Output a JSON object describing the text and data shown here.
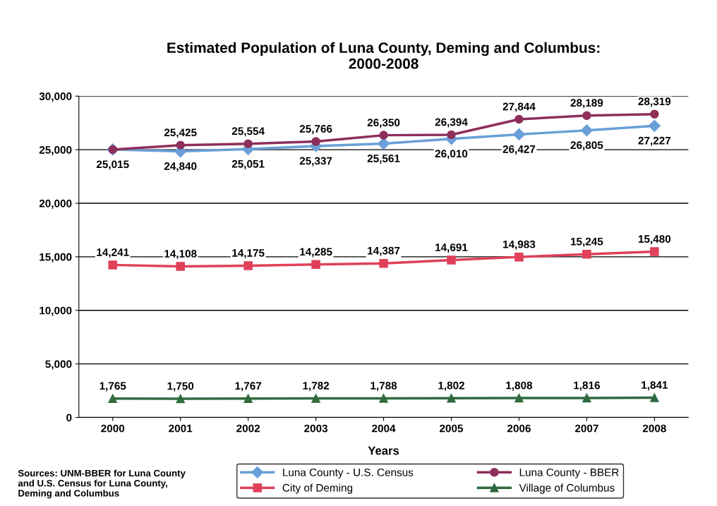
{
  "chart_data": {
    "type": "line",
    "title": "Estimated Population of Luna County, Deming and Columbus:\n2000-2008",
    "xlabel": "Years",
    "categories": [
      "2000",
      "2001",
      "2002",
      "2003",
      "2004",
      "2005",
      "2006",
      "2007",
      "2008"
    ],
    "series": [
      {
        "name": "Luna County - U.S. Census",
        "color": "#6a9fd8",
        "marker": "diamond",
        "values": [
          25015,
          24840,
          25051,
          25337,
          25561,
          26010,
          26427,
          26805,
          27227
        ],
        "value_labels": [
          "25,015",
          "24,840",
          "25,051",
          "25,337",
          "25,561",
          "26,010",
          "26,427",
          "26,805",
          "27,227"
        ]
      },
      {
        "name": "Luna County - BBER",
        "color": "#8e2f5a",
        "marker": "circle",
        "values": [
          25015,
          25425,
          25554,
          25766,
          26350,
          26394,
          27844,
          28189,
          28319
        ],
        "value_labels": [
          null,
          "25,425",
          "25,554",
          "25,766",
          "26,350",
          "26,394",
          "27,844",
          "28,189",
          "28,319"
        ]
      },
      {
        "name": "City of Deming",
        "color": "#e0405a",
        "marker": "square",
        "values": [
          14241,
          14108,
          14175,
          14285,
          14387,
          14691,
          14983,
          15245,
          15480
        ],
        "value_labels": [
          "14,241",
          "14,108",
          "14,175",
          "14,285",
          "14,387",
          "14,691",
          "14,983",
          "15,245",
          "15,480"
        ]
      },
      {
        "name": "Village of Columbus",
        "color": "#2f6b3f",
        "marker": "triangle",
        "values": [
          1765,
          1750,
          1767,
          1782,
          1788,
          1802,
          1808,
          1816,
          1841
        ],
        "value_labels": [
          "1,765",
          "1,750",
          "1,767",
          "1,782",
          "1,788",
          "1,802",
          "1,808",
          "1,816",
          "1,841"
        ]
      }
    ],
    "ylim": [
      0,
      30000
    ],
    "yticks": [
      {
        "value": 0,
        "label": "0"
      },
      {
        "value": 5000,
        "label": "5,000"
      },
      {
        "value": 10000,
        "label": "10,000"
      },
      {
        "value": 15000,
        "label": "15,000"
      },
      {
        "value": 20000,
        "label": "20,000"
      },
      {
        "value": 25000,
        "label": "25,000"
      },
      {
        "value": 30000,
        "label": "30,000"
      }
    ],
    "grid": "y",
    "legend": "bottom",
    "line_style": "solid",
    "annotations": [
      "Sources: UNM-BBER for Luna County\nand U.S. Census for Luna County,\nDeming and Columbus"
    ]
  }
}
